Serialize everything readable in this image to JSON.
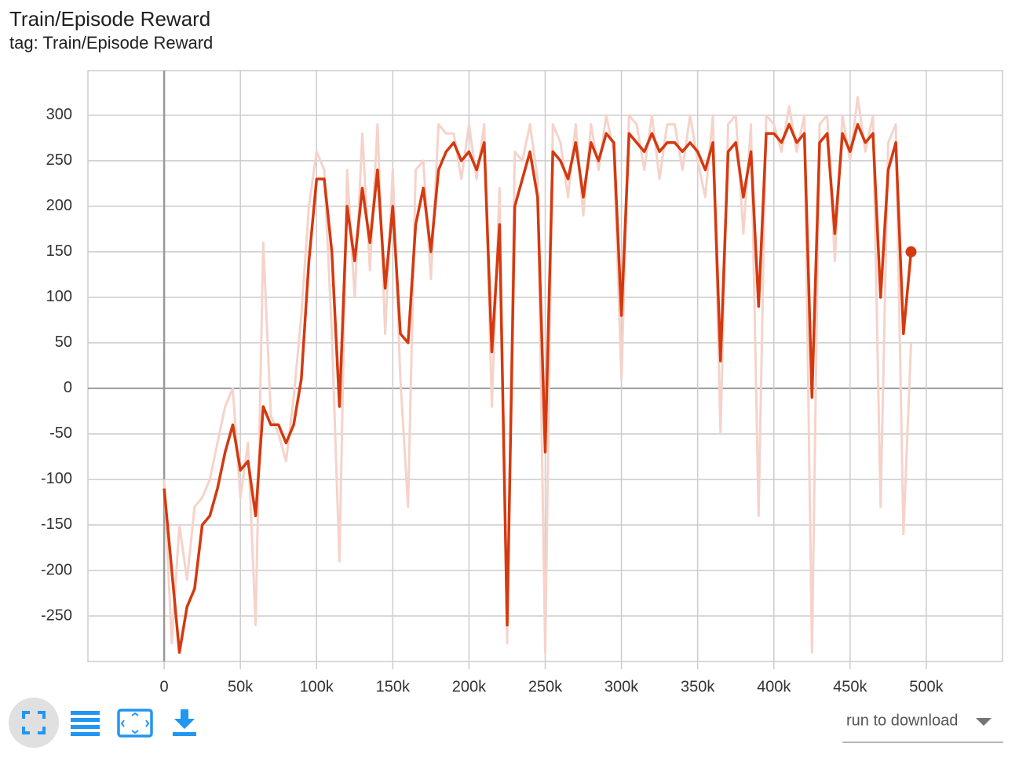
{
  "chart_data": {
    "type": "line",
    "title": "Train/Episode Reward",
    "subtitle": "tag: Train/Episode Reward",
    "x": [
      0,
      5000,
      10000,
      15000,
      20000,
      25000,
      30000,
      35000,
      40000,
      45000,
      50000,
      55000,
      60000,
      65000,
      70000,
      75000,
      80000,
      85000,
      90000,
      95000,
      100000,
      105000,
      110000,
      115000,
      120000,
      125000,
      130000,
      135000,
      140000,
      145000,
      150000,
      155000,
      160000,
      165000,
      170000,
      175000,
      180000,
      185000,
      190000,
      195000,
      200000,
      205000,
      210000,
      215000,
      220000,
      225000,
      230000,
      235000,
      240000,
      245000,
      250000,
      255000,
      260000,
      265000,
      270000,
      275000,
      280000,
      285000,
      290000,
      295000,
      300000,
      305000,
      310000,
      315000,
      320000,
      325000,
      330000,
      335000,
      340000,
      345000,
      350000,
      355000,
      360000,
      365000,
      370000,
      375000,
      380000,
      385000,
      390000,
      395000,
      400000,
      405000,
      410000,
      415000,
      420000,
      425000,
      430000,
      435000,
      440000,
      445000,
      450000,
      455000,
      460000,
      465000,
      470000,
      475000,
      480000,
      485000,
      490000
    ],
    "series": [
      {
        "color": "#f5d3ca",
        "values": [
          -100,
          -280,
          -150,
          -210,
          -130,
          -120,
          -100,
          -60,
          -20,
          0,
          -120,
          -60,
          -260,
          160,
          -30,
          -50,
          -80,
          -10,
          80,
          200,
          260,
          240,
          60,
          -190,
          240,
          100,
          280,
          130,
          290,
          60,
          240,
          10,
          -130,
          240,
          250,
          120,
          290,
          280,
          280,
          230,
          290,
          230,
          290,
          -20,
          220,
          -280,
          260,
          250,
          290,
          230,
          -290,
          290,
          270,
          210,
          290,
          190,
          290,
          240,
          300,
          260,
          10,
          300,
          290,
          240,
          300,
          230,
          290,
          290,
          240,
          300,
          250,
          210,
          300,
          -50,
          290,
          300,
          170,
          290,
          -140,
          300,
          290,
          260,
          310,
          260,
          300,
          -290,
          290,
          300,
          140,
          300,
          250,
          320,
          260,
          300,
          -130,
          270,
          290,
          -160,
          50
        ]
      },
      {
        "color": "#d4390f",
        "values": [
          -110,
          -200,
          -290,
          -240,
          -220,
          -150,
          -140,
          -110,
          -70,
          -40,
          -90,
          -80,
          -140,
          -20,
          -40,
          -40,
          -60,
          -40,
          10,
          140,
          230,
          230,
          150,
          -20,
          200,
          140,
          220,
          160,
          240,
          110,
          200,
          60,
          50,
          180,
          220,
          150,
          240,
          260,
          270,
          250,
          260,
          240,
          270,
          40,
          180,
          -260,
          200,
          230,
          260,
          210,
          -70,
          260,
          250,
          230,
          270,
          210,
          270,
          250,
          280,
          270,
          80,
          280,
          270,
          260,
          280,
          260,
          270,
          270,
          260,
          270,
          260,
          240,
          270,
          30,
          260,
          270,
          210,
          260,
          90,
          280,
          280,
          270,
          290,
          270,
          280,
          -10,
          270,
          280,
          170,
          280,
          260,
          290,
          270,
          280,
          100,
          240,
          270,
          60,
          150
        ]
      }
    ],
    "xlim": [
      -50000,
      550000
    ],
    "xticks": [
      {
        "value": 0,
        "label": "0"
      },
      {
        "value": 50000,
        "label": "50k"
      },
      {
        "value": 100000,
        "label": "100k"
      },
      {
        "value": 150000,
        "label": "150k"
      },
      {
        "value": 200000,
        "label": "200k"
      },
      {
        "value": 250000,
        "label": "250k"
      },
      {
        "value": 300000,
        "label": "300k"
      },
      {
        "value": 350000,
        "label": "350k"
      },
      {
        "value": 400000,
        "label": "400k"
      },
      {
        "value": 450000,
        "label": "450k"
      },
      {
        "value": 500000,
        "label": "500k"
      }
    ],
    "ylim": [
      -300,
      349
    ],
    "yticks": [
      -250,
      -200,
      -150,
      -100,
      -50,
      0,
      50,
      100,
      150,
      200,
      250,
      300
    ],
    "grid": true
  },
  "controls": {
    "download_select": "run to download"
  }
}
